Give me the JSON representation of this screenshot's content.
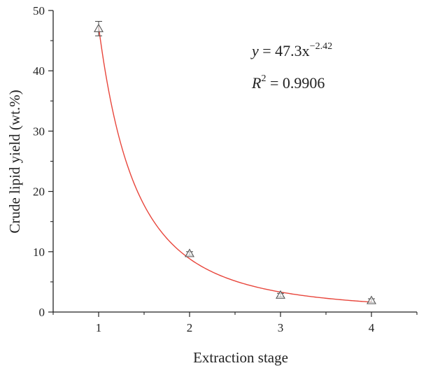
{
  "chart_data": {
    "type": "scatter",
    "xlabel": "Extraction stage",
    "ylabel": "Crude lipid yield (wt.%)",
    "xlim": [
      0.5,
      4.5
    ],
    "ylim": [
      0,
      50
    ],
    "xticks": [
      1,
      2,
      3,
      4
    ],
    "yticks": [
      0,
      10,
      20,
      30,
      40,
      50
    ],
    "xtick_labels": [
      "1",
      "2",
      "3",
      "4"
    ],
    "ytick_labels": [
      "0",
      "10",
      "20",
      "30",
      "40",
      "50"
    ],
    "grid": false,
    "points": [
      {
        "x": 1,
        "y": 47.0,
        "err": 1.2
      },
      {
        "x": 2,
        "y": 9.7,
        "err": 0.3
      },
      {
        "x": 3,
        "y": 2.8,
        "err": 0.3
      },
      {
        "x": 4,
        "y": 1.9,
        "err": 0.3
      }
    ],
    "marker": "open-triangle",
    "marker_color": "#555555",
    "fit": {
      "model": "power",
      "a": 47.3,
      "b": -2.42,
      "color": "#e8463c",
      "x_range": [
        1,
        4
      ]
    },
    "annotations": {
      "equation_lhs": "y",
      "equation_eq": " = 47.3x",
      "equation_exp": "−2.42",
      "r2_lhs": "R",
      "r2_exp": "2",
      "r2_rhs": " = 0.9906"
    }
  }
}
